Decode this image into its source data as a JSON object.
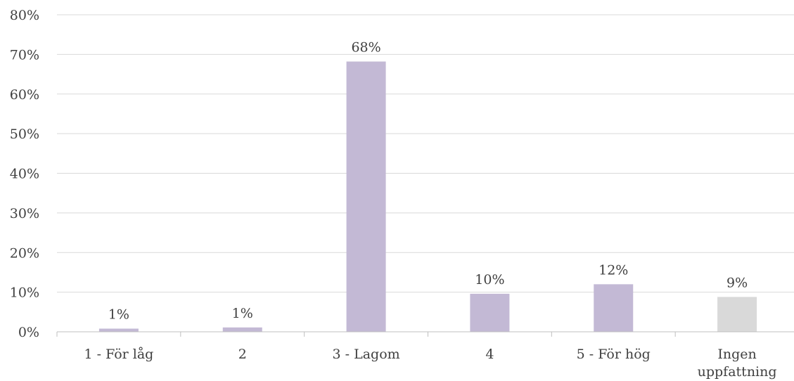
{
  "chart_data": {
    "type": "bar",
    "categories": [
      "1 - För låg",
      "2",
      "3 - Lagom",
      "4",
      "5 - För hög",
      "Ingen uppfattning"
    ],
    "category_label_lines": [
      [
        "1 - För låg"
      ],
      [
        "2"
      ],
      [
        "3 - Lagom"
      ],
      [
        "4"
      ],
      [
        "5 - För hög"
      ],
      [
        "Ingen",
        "uppfattning"
      ]
    ],
    "values": [
      1,
      1,
      68,
      10,
      12,
      9
    ],
    "bar_heights": [
      0.8,
      1.1,
      68.2,
      9.6,
      12.0,
      8.8
    ],
    "data_labels": [
      "1%",
      "1%",
      "68%",
      "10%",
      "12%",
      "9%"
    ],
    "bar_colors": [
      "#c3b9d5",
      "#c3b9d5",
      "#c3b9d5",
      "#c3b9d5",
      "#c3b9d5",
      "#d9d9d9"
    ],
    "ylim": [
      0,
      80
    ],
    "yticks": [
      0,
      10,
      20,
      30,
      40,
      50,
      60,
      70,
      80
    ],
    "ytick_labels": [
      "0%",
      "10%",
      "20%",
      "30%",
      "40%",
      "50%",
      "60%",
      "70%",
      "80%"
    ],
    "grid": true,
    "title": "",
    "xlabel": "",
    "ylabel": "",
    "colors": {
      "grid": "#d9d9d9",
      "axis": "#bfbfbf",
      "text": "#404040"
    }
  }
}
